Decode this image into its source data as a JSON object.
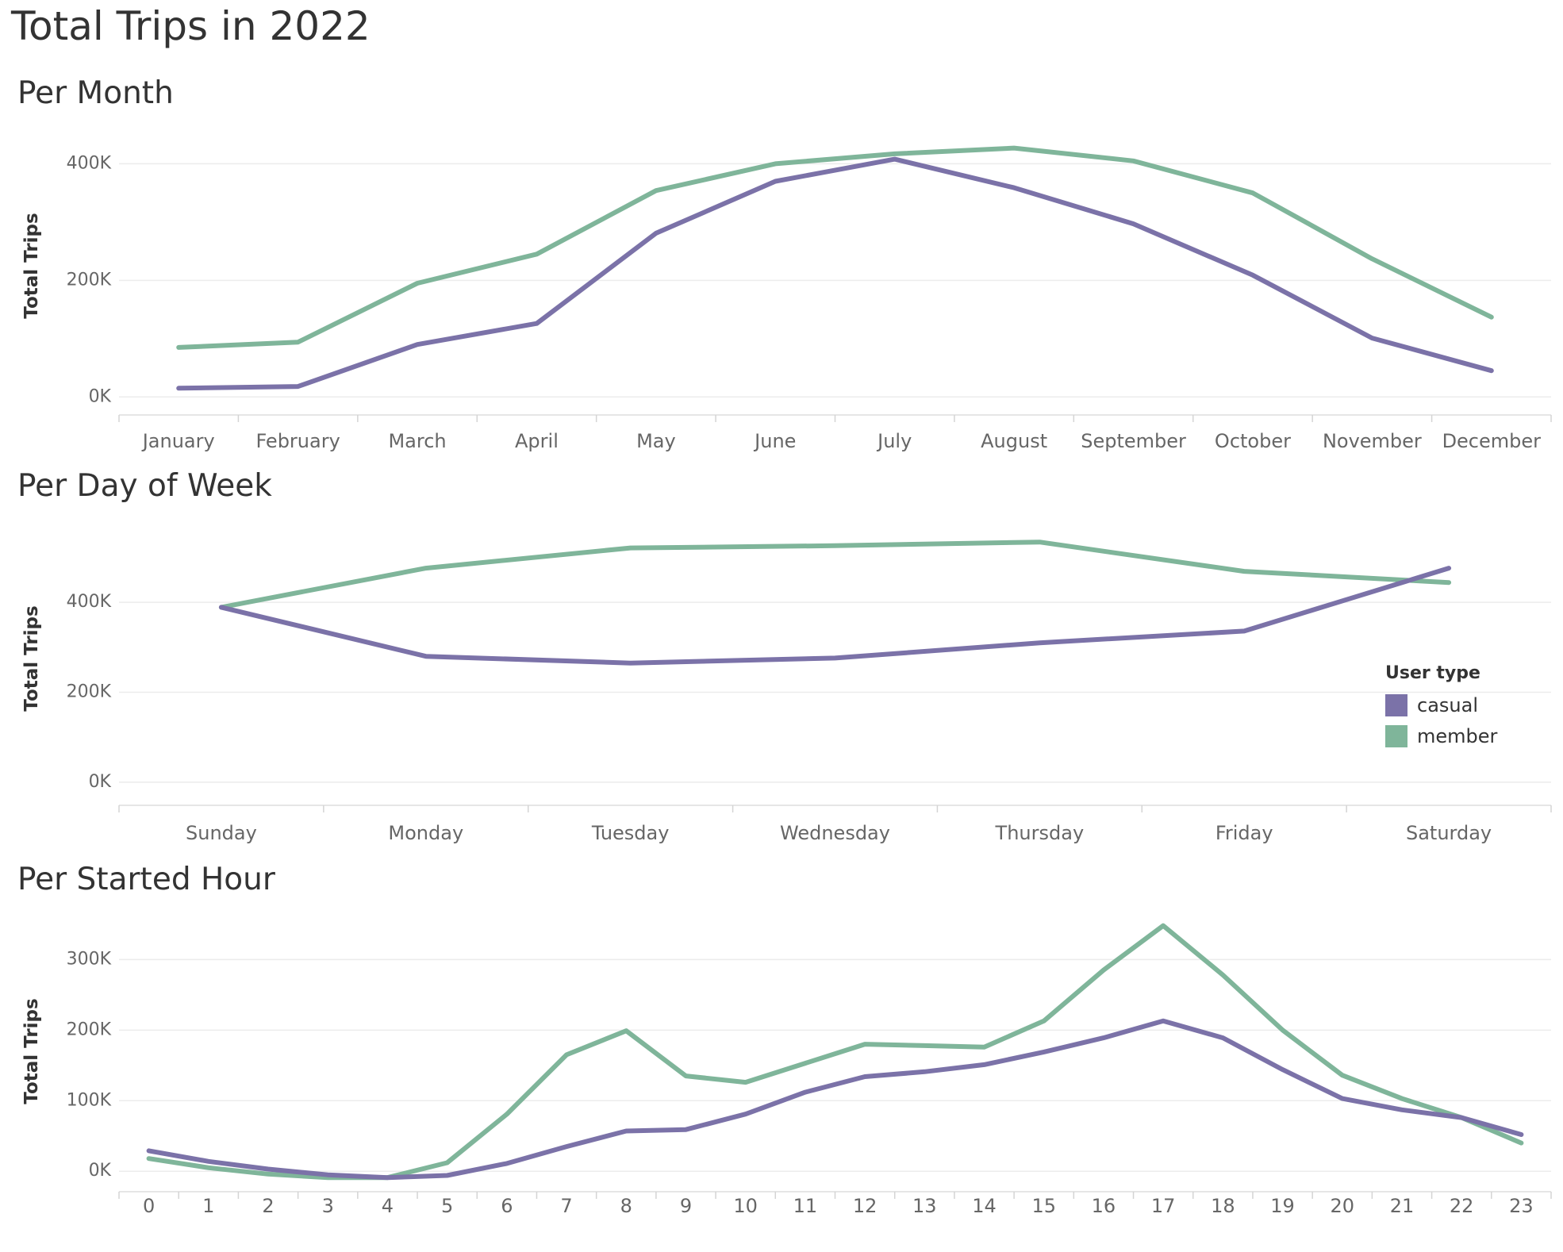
{
  "dashboard": {
    "title": "Total Trips in 2022"
  },
  "legend": {
    "title": "User type",
    "items": [
      {
        "label": "casual",
        "color": "#7b72a8"
      },
      {
        "label": "member",
        "color": "#7fb59a"
      }
    ]
  },
  "chart_data": [
    {
      "type": "line",
      "title": "Per Month",
      "xlabel": "",
      "ylabel": "Total Trips",
      "categories": [
        "January",
        "February",
        "March",
        "April",
        "May",
        "June",
        "July",
        "August",
        "September",
        "October",
        "November",
        "December"
      ],
      "yticks": [
        0,
        200000,
        400000
      ],
      "ytick_labels": [
        "0K",
        "200K",
        "400K"
      ],
      "ylim": [
        -20000,
        470000
      ],
      "grid": true,
      "series": [
        {
          "name": "casual",
          "color": "#7b72a8",
          "values": [
            15000,
            18000,
            90000,
            126000,
            281000,
            370000,
            408000,
            359000,
            297000,
            209000,
            101000,
            45000
          ]
        },
        {
          "name": "member",
          "color": "#7fb59a",
          "values": [
            85000,
            94000,
            195000,
            245000,
            354000,
            400000,
            417000,
            427000,
            405000,
            350000,
            237000,
            137000
          ]
        }
      ]
    },
    {
      "type": "line",
      "title": "Per Day of Week",
      "xlabel": "",
      "ylabel": "Total Trips",
      "categories": [
        "Sunday",
        "Monday",
        "Tuesday",
        "Wednesday",
        "Thursday",
        "Friday",
        "Saturday"
      ],
      "yticks": [
        0,
        200000,
        400000
      ],
      "ytick_labels": [
        "0K",
        "200K",
        "400K"
      ],
      "ylim": [
        -25000,
        575000
      ],
      "grid": true,
      "legend": "right",
      "series": [
        {
          "name": "casual",
          "color": "#7b72a8",
          "values": [
            389000,
            280000,
            265000,
            276000,
            310000,
            336000,
            476000
          ]
        },
        {
          "name": "member",
          "color": "#7fb59a",
          "values": [
            389000,
            476000,
            521000,
            526000,
            534000,
            469000,
            444000
          ]
        }
      ]
    },
    {
      "type": "line",
      "title": "Per Started Hour",
      "xlabel": "",
      "ylabel": "Total Trips",
      "categories": [
        "0",
        "1",
        "2",
        "3",
        "4",
        "5",
        "6",
        "7",
        "8",
        "9",
        "10",
        "11",
        "12",
        "13",
        "14",
        "15",
        "16",
        "17",
        "18",
        "19",
        "20",
        "21",
        "22",
        "23"
      ],
      "yticks": [
        0,
        100000,
        200000,
        300000
      ],
      "ytick_labels": [
        "0K",
        "100K",
        "200K",
        "300K"
      ],
      "ylim": [
        -20000,
        360000
      ],
      "grid": true,
      "series": [
        {
          "name": "casual",
          "color": "#7b72a8",
          "values": [
            29000,
            14000,
            3000,
            -5000,
            -9000,
            -6000,
            11000,
            35000,
            57000,
            59000,
            81000,
            112000,
            134000,
            141000,
            151000,
            169000,
            189000,
            213000,
            189000,
            144000,
            103000,
            87000,
            76000,
            52000
          ]
        },
        {
          "name": "member",
          "color": "#7fb59a",
          "values": [
            18000,
            5000,
            -4000,
            -9000,
            -9000,
            12000,
            81000,
            165000,
            199000,
            135000,
            126000,
            153000,
            180000,
            178000,
            176000,
            213000,
            285000,
            348000,
            278000,
            200000,
            136000,
            103000,
            76000,
            40000
          ]
        }
      ]
    }
  ]
}
